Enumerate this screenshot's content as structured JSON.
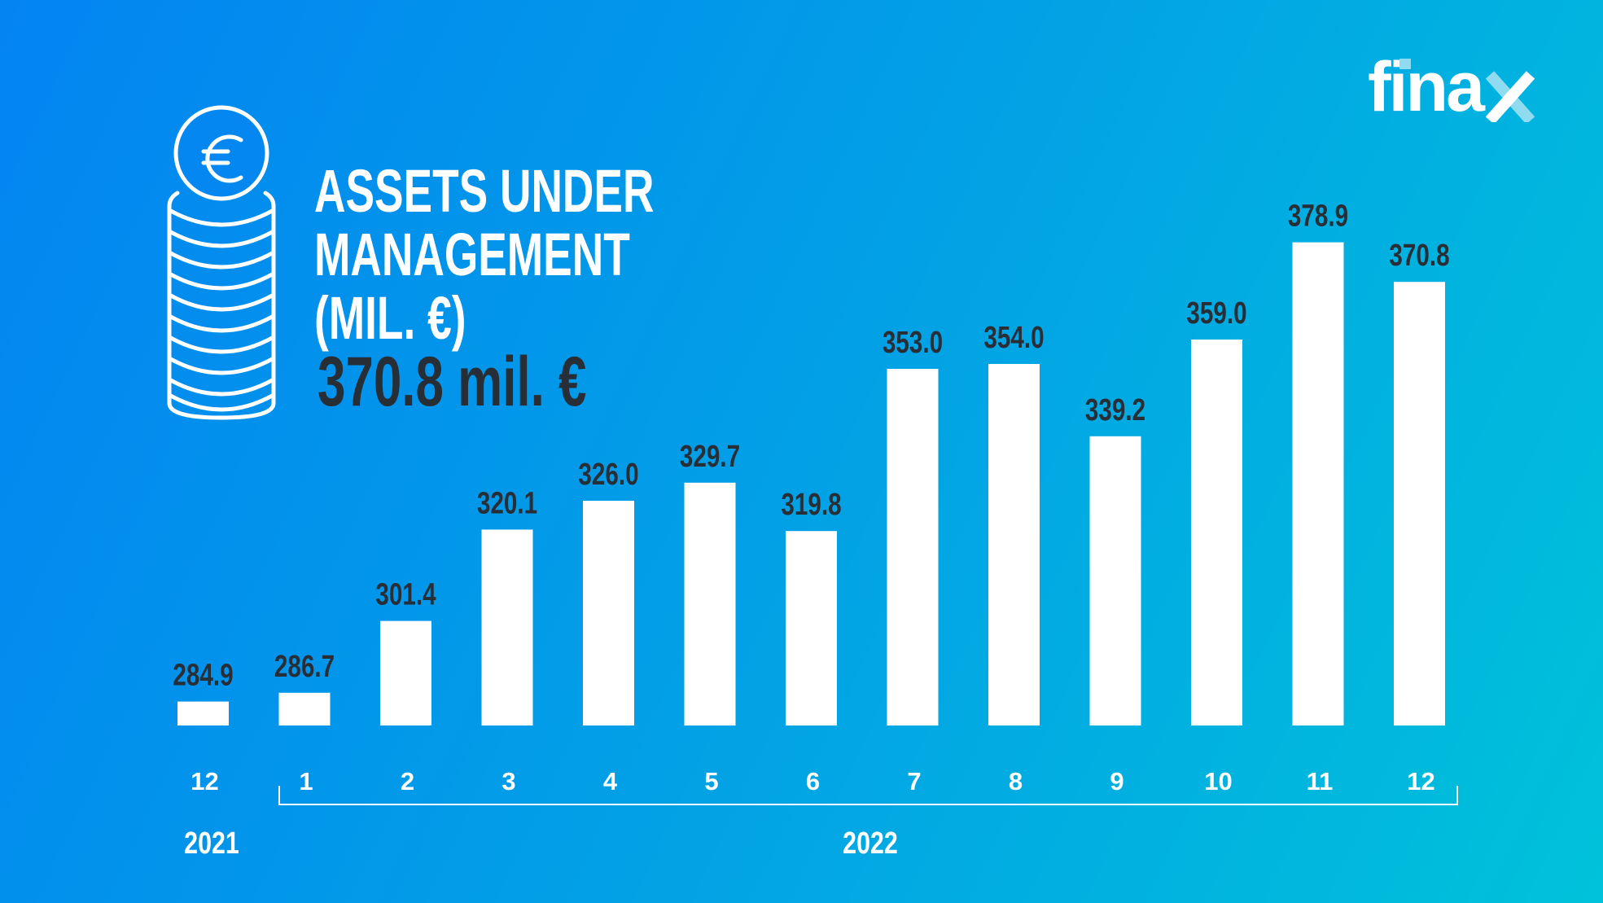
{
  "header": {
    "title_lines": [
      "ASSETS UNDER",
      "MANAGEMENT",
      "(MIL. €)"
    ],
    "current_value": "370.8 mil. €",
    "logo": "finax",
    "icon": "euro-coin-stack-icon"
  },
  "colors": {
    "background_start": "#0384f2",
    "background_end": "#00c2da",
    "bars": "#ffffff",
    "value_labels": "#272e36"
  },
  "chart_data": {
    "type": "bar",
    "categories": [
      "12",
      "1",
      "2",
      "3",
      "4",
      "5",
      "6",
      "7",
      "8",
      "9",
      "10",
      "11",
      "12"
    ],
    "years": [
      {
        "label": "2021",
        "months": [
          "12"
        ]
      },
      {
        "label": "2022",
        "months": [
          "1",
          "2",
          "3",
          "4",
          "5",
          "6",
          "7",
          "8",
          "9",
          "10",
          "11",
          "12"
        ]
      }
    ],
    "values": [
      284.9,
      286.7,
      301.4,
      320.1,
      326.0,
      329.7,
      319.8,
      353.0,
      354.0,
      339.2,
      359.0,
      378.9,
      370.8
    ],
    "value_labels": [
      "284.9",
      "286.7",
      "301.4",
      "320.1",
      "326.0",
      "329.7",
      "319.8",
      "353.0",
      "354.0",
      "339.2",
      "359.0",
      "378.9",
      "370.8"
    ],
    "title": "ASSETS UNDER MANAGEMENT (MIL. €)",
    "xlabel": "",
    "ylabel": "",
    "ylim": [
      280,
      385
    ],
    "grid": false,
    "legend": "none"
  }
}
